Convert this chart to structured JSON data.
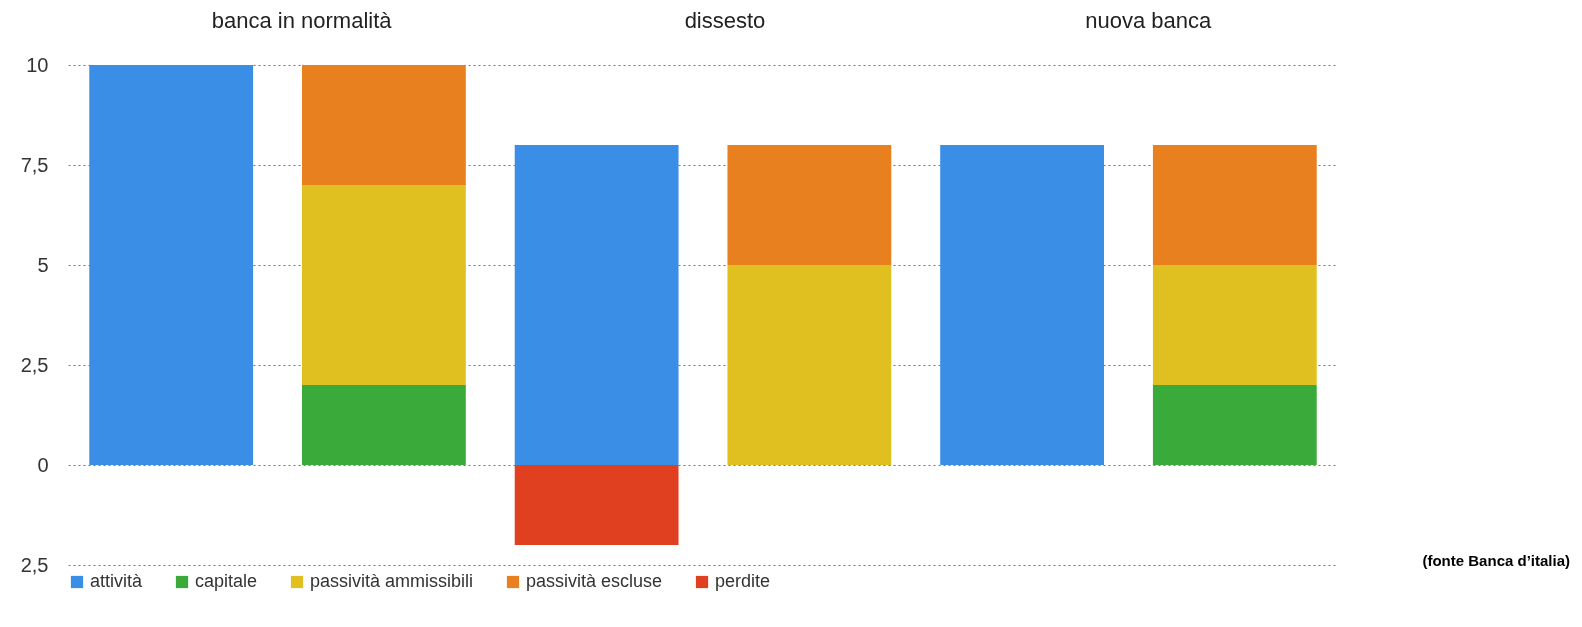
{
  "chart_data": {
    "type": "bar",
    "stacked": true,
    "categories": [
      null,
      null,
      null,
      null,
      null,
      null
    ],
    "series": [
      {
        "name": "attività",
        "color": "#3a8ee6",
        "values": [
          10,
          null,
          8,
          null,
          8,
          null
        ]
      },
      {
        "name": "capitale",
        "color": "#3aaa3a",
        "values": [
          null,
          2,
          null,
          null,
          null,
          2
        ]
      },
      {
        "name": "passività ammissibili",
        "color": "#e0c020",
        "values": [
          null,
          5,
          null,
          5,
          null,
          3
        ]
      },
      {
        "name": "passività escluse",
        "color": "#e88020",
        "values": [
          null,
          3,
          null,
          3,
          null,
          3
        ]
      },
      {
        "name": "perdite",
        "color": "#e04020",
        "values": [
          null,
          null,
          -2,
          null,
          null,
          null
        ]
      }
    ],
    "ylim": [
      -2.5,
      10
    ],
    "yticks": [
      {
        "value": -2.5,
        "label": "2,5"
      },
      0,
      {
        "value": 2.5,
        "label": "2,5"
      },
      5,
      {
        "value": 7.5,
        "label": "7,5"
      },
      10
    ],
    "grid": "y",
    "legend": "bottom",
    "annotations": [
      "banca in normalità",
      "dissesto",
      "nuova banca",
      "(fonte Banca d’italia)"
    ]
  }
}
